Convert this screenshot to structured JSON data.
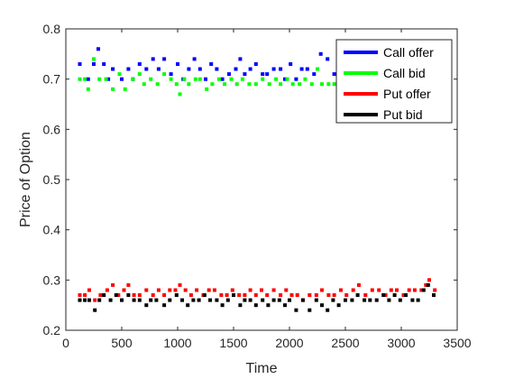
{
  "chart_data": {
    "type": "scatter",
    "title": "",
    "xlabel": "Time",
    "ylabel": "Price of Option",
    "xlim": [
      0,
      3500
    ],
    "ylim": [
      0.2,
      0.8
    ],
    "xticks": [
      "0",
      "500",
      "1000",
      "1500",
      "2000",
      "2500",
      "3000",
      "3500"
    ],
    "yticks": [
      "0.2",
      "0.3",
      "0.4",
      "0.5",
      "0.6",
      "0.7",
      "0.8"
    ],
    "grid": false,
    "legend_position": "top-right",
    "series": [
      {
        "name": "Call offer",
        "color": "#0000ff",
        "points": [
          [
            125,
            0.73
          ],
          [
            200,
            0.7
          ],
          [
            250,
            0.73
          ],
          [
            290,
            0.76
          ],
          [
            340,
            0.73
          ],
          [
            380,
            0.7
          ],
          [
            420,
            0.72
          ],
          [
            500,
            0.7
          ],
          [
            560,
            0.72
          ],
          [
            600,
            0.7
          ],
          [
            660,
            0.73
          ],
          [
            720,
            0.72
          ],
          [
            780,
            0.74
          ],
          [
            830,
            0.72
          ],
          [
            880,
            0.74
          ],
          [
            940,
            0.71
          ],
          [
            1000,
            0.73
          ],
          [
            1050,
            0.7
          ],
          [
            1100,
            0.72
          ],
          [
            1150,
            0.74
          ],
          [
            1200,
            0.72
          ],
          [
            1250,
            0.7
          ],
          [
            1300,
            0.73
          ],
          [
            1350,
            0.72
          ],
          [
            1400,
            0.7
          ],
          [
            1460,
            0.71
          ],
          [
            1520,
            0.72
          ],
          [
            1560,
            0.74
          ],
          [
            1600,
            0.71
          ],
          [
            1650,
            0.72
          ],
          [
            1700,
            0.73
          ],
          [
            1760,
            0.71
          ],
          [
            1800,
            0.71
          ],
          [
            1860,
            0.72
          ],
          [
            1920,
            0.72
          ],
          [
            1960,
            0.7
          ],
          [
            2010,
            0.73
          ],
          [
            2060,
            0.7
          ],
          [
            2110,
            0.72
          ],
          [
            2160,
            0.72
          ],
          [
            2220,
            0.71
          ],
          [
            2280,
            0.75
          ],
          [
            2340,
            0.74
          ],
          [
            2400,
            0.71
          ],
          [
            2450,
            0.74
          ],
          [
            2500,
            0.73
          ]
        ]
      },
      {
        "name": "Call bid",
        "color": "#00ff00",
        "points": [
          [
            125,
            0.7
          ],
          [
            170,
            0.7
          ],
          [
            200,
            0.68
          ],
          [
            250,
            0.74
          ],
          [
            300,
            0.7
          ],
          [
            360,
            0.7
          ],
          [
            420,
            0.68
          ],
          [
            480,
            0.71
          ],
          [
            530,
            0.68
          ],
          [
            600,
            0.7
          ],
          [
            660,
            0.71
          ],
          [
            700,
            0.69
          ],
          [
            760,
            0.7
          ],
          [
            820,
            0.69
          ],
          [
            880,
            0.71
          ],
          [
            940,
            0.7
          ],
          [
            990,
            0.69
          ],
          [
            1020,
            0.67
          ],
          [
            1060,
            0.7
          ],
          [
            1100,
            0.69
          ],
          [
            1160,
            0.7
          ],
          [
            1200,
            0.7
          ],
          [
            1260,
            0.68
          ],
          [
            1310,
            0.69
          ],
          [
            1370,
            0.7
          ],
          [
            1420,
            0.69
          ],
          [
            1480,
            0.7
          ],
          [
            1530,
            0.69
          ],
          [
            1580,
            0.7
          ],
          [
            1640,
            0.69
          ],
          [
            1700,
            0.69
          ],
          [
            1760,
            0.7
          ],
          [
            1820,
            0.69
          ],
          [
            1880,
            0.7
          ],
          [
            1920,
            0.69
          ],
          [
            1980,
            0.7
          ],
          [
            2030,
            0.69
          ],
          [
            2090,
            0.69
          ],
          [
            2140,
            0.7
          ],
          [
            2200,
            0.69
          ],
          [
            2250,
            0.72
          ],
          [
            2290,
            0.69
          ],
          [
            2350,
            0.69
          ],
          [
            2400,
            0.69
          ],
          [
            2460,
            0.7
          ]
        ]
      },
      {
        "name": "Put offer",
        "color": "#ff0000",
        "points": [
          [
            125,
            0.27
          ],
          [
            170,
            0.27
          ],
          [
            210,
            0.28
          ],
          [
            260,
            0.26
          ],
          [
            310,
            0.27
          ],
          [
            370,
            0.28
          ],
          [
            420,
            0.29
          ],
          [
            470,
            0.27
          ],
          [
            520,
            0.28
          ],
          [
            560,
            0.29
          ],
          [
            610,
            0.27
          ],
          [
            660,
            0.27
          ],
          [
            720,
            0.28
          ],
          [
            780,
            0.27
          ],
          [
            830,
            0.28
          ],
          [
            880,
            0.27
          ],
          [
            930,
            0.28
          ],
          [
            980,
            0.28
          ],
          [
            1020,
            0.29
          ],
          [
            1070,
            0.28
          ],
          [
            1120,
            0.27
          ],
          [
            1170,
            0.28
          ],
          [
            1230,
            0.27
          ],
          [
            1280,
            0.28
          ],
          [
            1330,
            0.28
          ],
          [
            1390,
            0.27
          ],
          [
            1440,
            0.27
          ],
          [
            1490,
            0.28
          ],
          [
            1550,
            0.27
          ],
          [
            1600,
            0.27
          ],
          [
            1650,
            0.28
          ],
          [
            1700,
            0.27
          ],
          [
            1750,
            0.28
          ],
          [
            1800,
            0.27
          ],
          [
            1860,
            0.28
          ],
          [
            1920,
            0.27
          ],
          [
            1970,
            0.28
          ],
          [
            2020,
            0.27
          ],
          [
            2070,
            0.27
          ],
          [
            2120,
            0.26
          ],
          [
            2180,
            0.27
          ],
          [
            2240,
            0.27
          ],
          [
            2290,
            0.28
          ],
          [
            2350,
            0.27
          ],
          [
            2400,
            0.27
          ],
          [
            2460,
            0.28
          ],
          [
            2510,
            0.27
          ],
          [
            2570,
            0.28
          ],
          [
            2620,
            0.29
          ],
          [
            2680,
            0.27
          ],
          [
            2740,
            0.28
          ],
          [
            2800,
            0.28
          ],
          [
            2860,
            0.27
          ],
          [
            2910,
            0.28
          ],
          [
            2960,
            0.28
          ],
          [
            3020,
            0.27
          ],
          [
            3070,
            0.28
          ],
          [
            3120,
            0.28
          ],
          [
            3180,
            0.28
          ],
          [
            3220,
            0.29
          ],
          [
            3250,
            0.3
          ],
          [
            3300,
            0.28
          ]
        ]
      },
      {
        "name": "Put bid",
        "color": "#000000",
        "points": [
          [
            125,
            0.26
          ],
          [
            170,
            0.26
          ],
          [
            210,
            0.26
          ],
          [
            260,
            0.24
          ],
          [
            300,
            0.26
          ],
          [
            340,
            0.27
          ],
          [
            400,
            0.26
          ],
          [
            450,
            0.27
          ],
          [
            500,
            0.26
          ],
          [
            560,
            0.27
          ],
          [
            610,
            0.26
          ],
          [
            660,
            0.26
          ],
          [
            720,
            0.25
          ],
          [
            760,
            0.26
          ],
          [
            810,
            0.26
          ],
          [
            880,
            0.25
          ],
          [
            930,
            0.26
          ],
          [
            990,
            0.27
          ],
          [
            1040,
            0.26
          ],
          [
            1090,
            0.25
          ],
          [
            1140,
            0.26
          ],
          [
            1190,
            0.26
          ],
          [
            1240,
            0.27
          ],
          [
            1290,
            0.26
          ],
          [
            1350,
            0.26
          ],
          [
            1400,
            0.25
          ],
          [
            1450,
            0.26
          ],
          [
            1500,
            0.27
          ],
          [
            1560,
            0.25
          ],
          [
            1600,
            0.26
          ],
          [
            1650,
            0.26
          ],
          [
            1700,
            0.25
          ],
          [
            1760,
            0.26
          ],
          [
            1810,
            0.25
          ],
          [
            1860,
            0.26
          ],
          [
            1910,
            0.26
          ],
          [
            1960,
            0.25
          ],
          [
            2000,
            0.26
          ],
          [
            2060,
            0.24
          ],
          [
            2120,
            0.26
          ],
          [
            2180,
            0.24
          ],
          [
            2240,
            0.26
          ],
          [
            2290,
            0.25
          ],
          [
            2340,
            0.24
          ],
          [
            2390,
            0.26
          ],
          [
            2440,
            0.25
          ],
          [
            2500,
            0.26
          ],
          [
            2560,
            0.26
          ],
          [
            2610,
            0.27
          ],
          [
            2670,
            0.26
          ],
          [
            2720,
            0.26
          ],
          [
            2780,
            0.26
          ],
          [
            2840,
            0.27
          ],
          [
            2890,
            0.26
          ],
          [
            2940,
            0.27
          ],
          [
            2990,
            0.26
          ],
          [
            3040,
            0.27
          ],
          [
            3100,
            0.26
          ],
          [
            3150,
            0.26
          ],
          [
            3200,
            0.28
          ],
          [
            3240,
            0.29
          ],
          [
            3290,
            0.27
          ]
        ]
      }
    ]
  }
}
